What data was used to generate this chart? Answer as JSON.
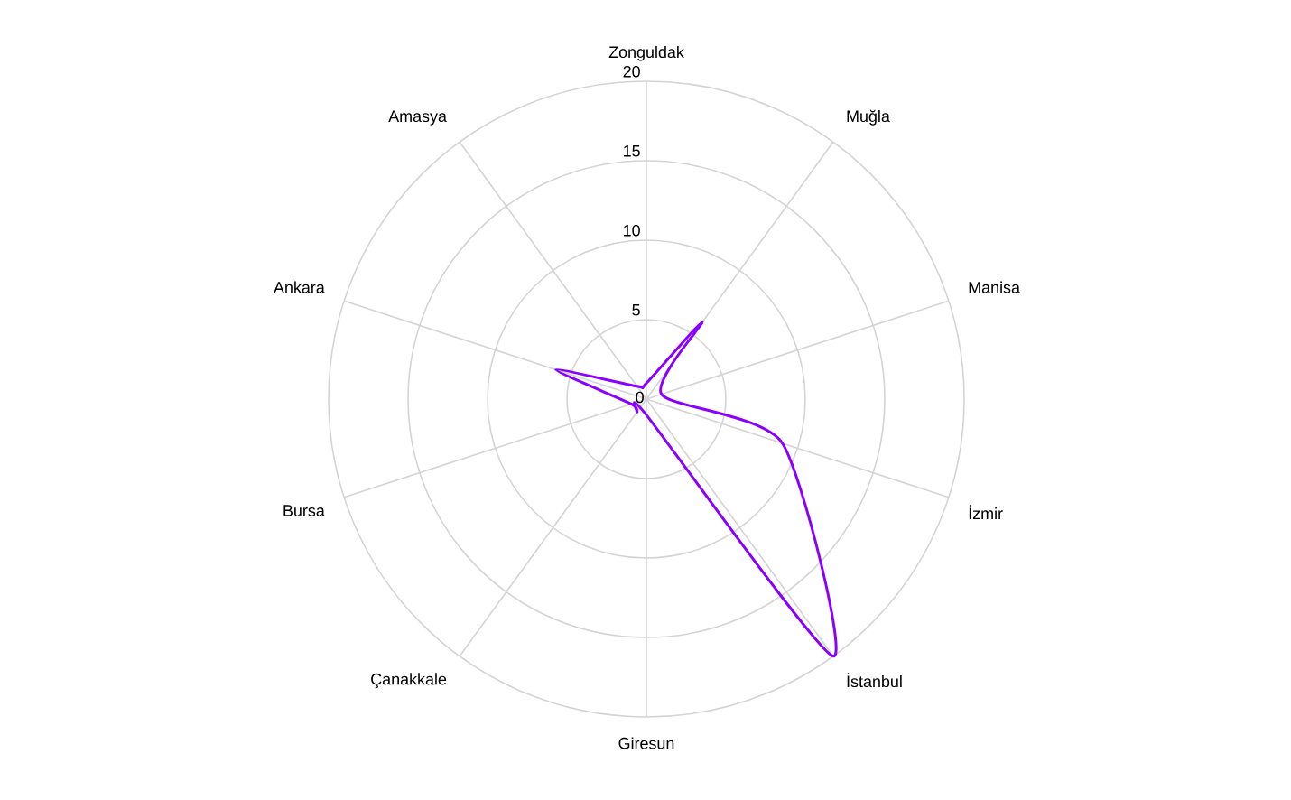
{
  "chart_data": {
    "type": "radar",
    "categories": [
      "Zonguldak",
      "Muğla",
      "Manisa",
      "İzmir",
      "İstanbul",
      "Giresun",
      "Çanakkale",
      "Bursa",
      "Ankara",
      "Amasya"
    ],
    "series": [
      {
        "color": "#8a00ff",
        "values": [
          1,
          6,
          1,
          9,
          20,
          1,
          1,
          1,
          6,
          1
        ]
      }
    ],
    "ylim": [
      0,
      20
    ],
    "yticks": [
      0,
      5,
      10,
      15,
      20
    ],
    "grid": true
  }
}
